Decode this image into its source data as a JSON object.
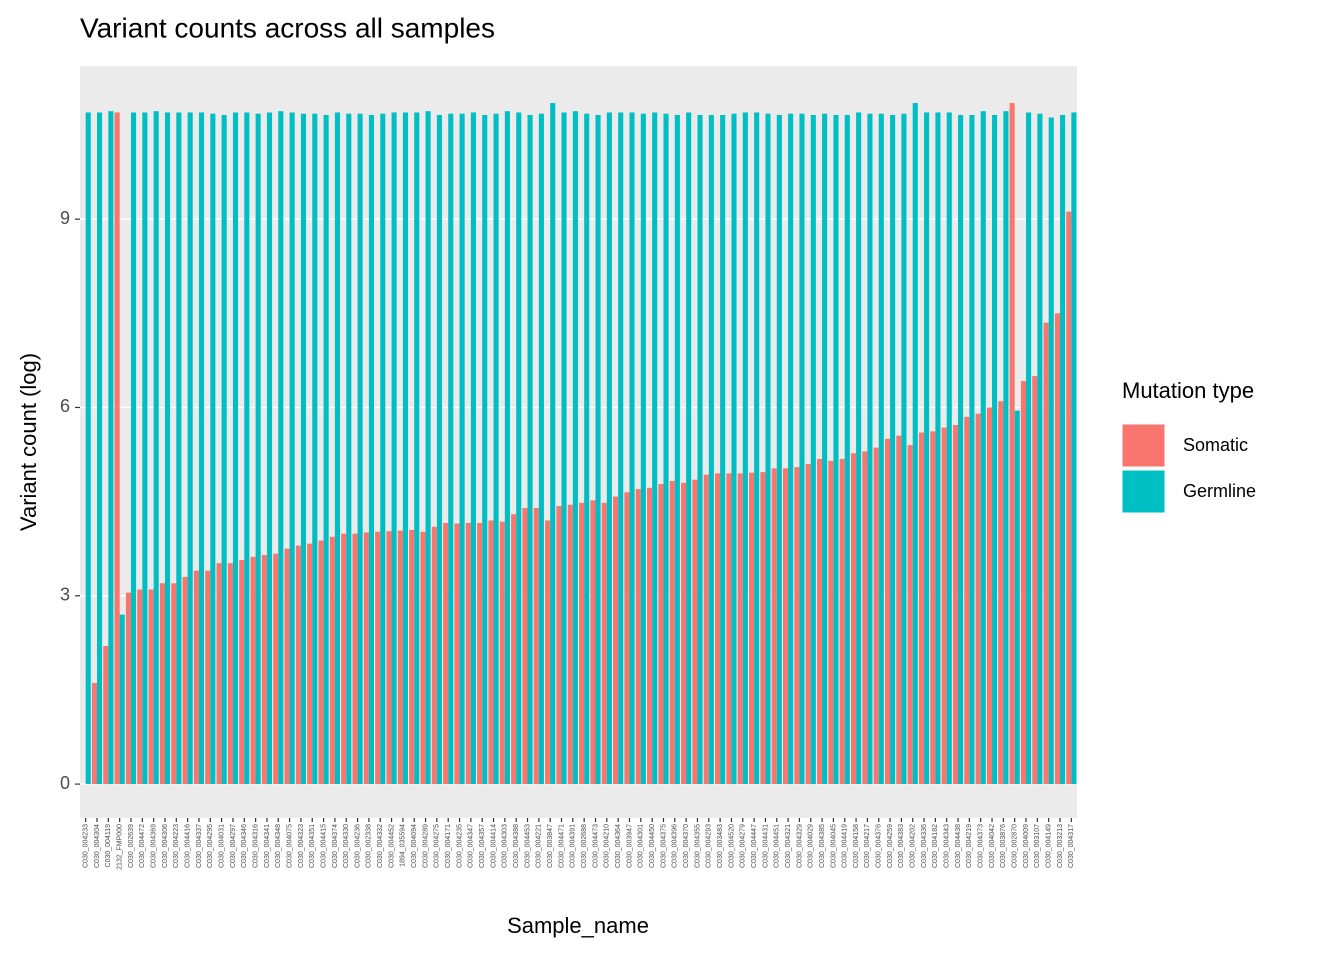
{
  "chart_data": {
    "type": "bar",
    "title": "Variant counts across all samples",
    "x_label": "Sample_name",
    "y_label": "Variant count (log)",
    "legend_title": "Mutation type",
    "categories": [
      "C030_004233",
      "C030_004304",
      "C030_004119",
      "2132_FMP000",
      "C030_002639",
      "C030_004472",
      "C030_004369",
      "C030_004306",
      "C030_004223",
      "C030_004416",
      "C030_004337",
      "C030_004295",
      "C030_004031",
      "C030_004297",
      "C030_004346",
      "C030_004316",
      "C030_004341",
      "C030_004348",
      "C030_004075",
      "C030_004323",
      "C030_004351",
      "C030_004415",
      "C030_004374",
      "C030_004330",
      "C030_004236",
      "C030_002338",
      "C030_004332",
      "C030_004452",
      "1894_035594",
      "C030_004094",
      "C030_004289",
      "C030_004275",
      "C030_004171",
      "C030_004235",
      "C030_004347",
      "C030_004357",
      "C030_004414",
      "C030_004303",
      "C030_004388",
      "C030_004453",
      "C030_004221",
      "C030_003847",
      "C030_004471",
      "C030_004391",
      "C030_002688",
      "C030_004473",
      "C030_004210",
      "C030_004364",
      "C030_003947",
      "C030_004301",
      "C030_004450",
      "C030_004375",
      "C030_004396",
      "C030_004370",
      "C030_004355",
      "C030_004293",
      "C030_003483",
      "C030_004520",
      "C030_004279",
      "C030_004447",
      "C030_004431",
      "C030_004451",
      "C030_004321",
      "C030_004329",
      "C030_004029",
      "C030_004385",
      "C030_004045",
      "C030_004419",
      "C030_004158",
      "C030_004217",
      "C030_004376",
      "C030_004259",
      "C030_004383",
      "C030_004202",
      "C030_004336",
      "C030_004182",
      "C030_004343",
      "C030_004438",
      "C030_004219",
      "C030_004373",
      "C030_004042",
      "C030_003876",
      "C030_002870",
      "C030_004009",
      "C030_003107",
      "C030_004149",
      "C030_003213",
      "C030_004317"
    ],
    "series": [
      {
        "name": "Somatic",
        "color": "#F8766D",
        "values": [
          null,
          1.61,
          2.2,
          10.7,
          3.05,
          3.1,
          3.1,
          3.2,
          3.2,
          3.3,
          3.4,
          3.4,
          3.52,
          3.52,
          3.57,
          3.62,
          3.65,
          3.67,
          3.75,
          3.8,
          3.83,
          3.88,
          3.94,
          3.99,
          3.99,
          4.01,
          4.02,
          4.03,
          4.04,
          4.05,
          4.02,
          4.1,
          4.16,
          4.15,
          4.16,
          4.16,
          4.2,
          4.18,
          4.3,
          4.4,
          4.4,
          4.2,
          4.43,
          4.45,
          4.48,
          4.52,
          4.48,
          4.58,
          4.65,
          4.7,
          4.72,
          4.78,
          4.83,
          4.8,
          4.85,
          4.93,
          4.95,
          4.95,
          4.95,
          4.96,
          4.97,
          5.03,
          5.03,
          5.05,
          5.1,
          5.18,
          5.15,
          5.18,
          5.27,
          5.3,
          5.36,
          5.5,
          5.55,
          5.4,
          5.6,
          5.62,
          5.68,
          5.72,
          5.85,
          5.9,
          6.0,
          6.1,
          10.85,
          6.42,
          6.5,
          7.35,
          7.5,
          9.12
        ]
      },
      {
        "name": "Germline",
        "color": "#00BFC4",
        "values": [
          10.7,
          10.7,
          10.72,
          2.7,
          10.7,
          10.7,
          10.72,
          10.7,
          10.7,
          10.7,
          10.7,
          10.68,
          10.66,
          10.7,
          10.7,
          10.68,
          10.7,
          10.72,
          10.7,
          10.68,
          10.68,
          10.66,
          10.7,
          10.68,
          10.68,
          10.66,
          10.68,
          10.7,
          10.7,
          10.7,
          10.72,
          10.66,
          10.68,
          10.68,
          10.7,
          10.66,
          10.68,
          10.72,
          10.7,
          10.66,
          10.68,
          10.85,
          10.7,
          10.72,
          10.68,
          10.66,
          10.7,
          10.7,
          10.7,
          10.68,
          10.7,
          10.68,
          10.66,
          10.7,
          10.66,
          10.66,
          10.66,
          10.68,
          10.7,
          10.7,
          10.68,
          10.66,
          10.68,
          10.68,
          10.66,
          10.68,
          10.66,
          10.66,
          10.7,
          10.68,
          10.68,
          10.66,
          10.68,
          10.85,
          10.7,
          10.7,
          10.7,
          10.66,
          10.66,
          10.72,
          10.66,
          10.72,
          5.95,
          10.7,
          10.68,
          10.62,
          10.66,
          10.7
        ]
      }
    ],
    "ylim": [
      -0.54,
      11.44
    ],
    "yticks": [
      0,
      3,
      6,
      9
    ],
    "grid": true,
    "legend": "right"
  }
}
